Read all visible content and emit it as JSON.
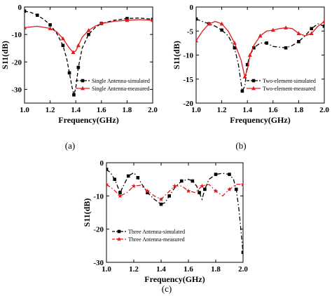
{
  "chart_data": [
    {
      "panel": "(a)",
      "type": "line",
      "xlabel": "Frequency(GHz)",
      "ylabel": "S11(dB)",
      "xlim": [
        1.0,
        2.0
      ],
      "ylim": [
        -35,
        0
      ],
      "xticks": [
        "1.0",
        "1.2",
        "1.4",
        "1.6",
        "1.8",
        "2.0"
      ],
      "yticks": [
        "-30",
        "-20",
        "-10",
        "0"
      ],
      "legend_position": "bottom-right",
      "series": [
        {
          "name": "Single Antenna-simulated",
          "color": "#000000",
          "dash": "dash",
          "marker": "square",
          "x": [
            1.0,
            1.05,
            1.1,
            1.15,
            1.2,
            1.25,
            1.3,
            1.33,
            1.35,
            1.37,
            1.385,
            1.4,
            1.42,
            1.45,
            1.5,
            1.55,
            1.6,
            1.7,
            1.8,
            1.9,
            2.0
          ],
          "y": [
            -1.5,
            -2.0,
            -3.0,
            -4.5,
            -6.5,
            -9.5,
            -14.0,
            -19.0,
            -24.0,
            -29.0,
            -32.0,
            -29.5,
            -22.0,
            -15.0,
            -10.0,
            -7.5,
            -6.0,
            -4.8,
            -4.2,
            -4.0,
            -4.5
          ]
        },
        {
          "name": "Single Antenna-measured",
          "color": "#e31a1c",
          "dash": "solid",
          "marker": "triangle",
          "x": [
            1.0,
            1.1,
            1.2,
            1.25,
            1.3,
            1.35,
            1.38,
            1.4,
            1.42,
            1.45,
            1.5,
            1.55,
            1.6,
            1.7,
            1.8,
            1.9,
            2.0
          ],
          "y": [
            -7.5,
            -7.0,
            -7.8,
            -9.0,
            -11.5,
            -15.0,
            -16.5,
            -16.0,
            -14.0,
            -11.0,
            -8.5,
            -7.0,
            -6.0,
            -5.2,
            -4.8,
            -4.6,
            -4.8
          ]
        }
      ]
    },
    {
      "panel": "(b)",
      "type": "line",
      "xlabel": "Frequency(GHz)",
      "ylabel": "S11(dB)",
      "xlim": [
        1.0,
        2.0
      ],
      "ylim": [
        -20,
        0
      ],
      "xticks": [
        "1.0",
        "1.2",
        "1.4",
        "1.6",
        "1.8",
        "2.0"
      ],
      "yticks": [
        "-20",
        "-15",
        "-10",
        "-5",
        "0"
      ],
      "legend_position": "bottom-right",
      "series": [
        {
          "name": "Two-element-simulated",
          "color": "#000000",
          "dash": "dashdot",
          "marker": "square",
          "x": [
            1.0,
            1.05,
            1.1,
            1.15,
            1.2,
            1.25,
            1.3,
            1.33,
            1.36,
            1.38,
            1.4,
            1.42,
            1.45,
            1.5,
            1.55,
            1.6,
            1.7,
            1.75,
            1.8,
            1.85,
            1.9,
            1.95,
            2.0
          ],
          "y": [
            -2.5,
            -3.0,
            -3.5,
            -4.0,
            -4.8,
            -6.0,
            -8.5,
            -12.0,
            -17.5,
            -16.5,
            -12.0,
            -10.0,
            -8.5,
            -7.5,
            -7.5,
            -8.2,
            -8.5,
            -8.0,
            -7.2,
            -6.0,
            -4.5,
            -3.5,
            -4.0
          ]
        },
        {
          "name": "Two-element-measured",
          "color": "#e31a1c",
          "dash": "solid",
          "marker": "triangle",
          "x": [
            1.0,
            1.05,
            1.1,
            1.15,
            1.2,
            1.25,
            1.3,
            1.35,
            1.38,
            1.4,
            1.42,
            1.45,
            1.5,
            1.55,
            1.6,
            1.65,
            1.7,
            1.75,
            1.8,
            1.85,
            1.9,
            1.95,
            2.0
          ],
          "y": [
            -7.0,
            -5.0,
            -3.5,
            -3.0,
            -3.5,
            -5.0,
            -7.5,
            -11.0,
            -14.5,
            -13.0,
            -10.0,
            -8.0,
            -6.0,
            -5.0,
            -4.8,
            -4.5,
            -4.3,
            -4.5,
            -5.5,
            -6.0,
            -5.5,
            -4.0,
            -3.0
          ]
        }
      ]
    },
    {
      "panel": "(c)",
      "type": "line",
      "xlabel": "Frequency(GHz)",
      "ylabel": "S11(dB)",
      "xlim": [
        1.0,
        2.0
      ],
      "ylim": [
        -30,
        0
      ],
      "xticks": [
        "1.0",
        "1.2",
        "1.4",
        "1.6",
        "1.8",
        "2.0"
      ],
      "yticks": [
        "-30",
        "-20",
        "-10",
        "0"
      ],
      "legend_position": "bottom-left",
      "series": [
        {
          "name": "Three Antenna-simulated",
          "color": "#000000",
          "dash": "dashdot",
          "marker": "square",
          "x": [
            1.0,
            1.03,
            1.06,
            1.08,
            1.1,
            1.13,
            1.16,
            1.2,
            1.23,
            1.26,
            1.3,
            1.35,
            1.4,
            1.43,
            1.46,
            1.5,
            1.55,
            1.6,
            1.63,
            1.66,
            1.68,
            1.7,
            1.72,
            1.75,
            1.8,
            1.85,
            1.9,
            1.93,
            1.95,
            1.97,
            2.0
          ],
          "y": [
            -2.0,
            -3.0,
            -5.0,
            -7.0,
            -9.0,
            -6.5,
            -4.0,
            -3.0,
            -4.5,
            -6.5,
            -9.0,
            -11.0,
            -12.5,
            -12.0,
            -10.0,
            -7.5,
            -5.5,
            -5.0,
            -5.5,
            -7.0,
            -9.0,
            -11.0,
            -8.0,
            -5.0,
            -3.5,
            -3.2,
            -3.5,
            -5.0,
            -8.0,
            -14.0,
            -27.0
          ]
        },
        {
          "name": "Three Antenna-measured",
          "color": "#e31a1c",
          "dash": "dashdot",
          "marker": "star",
          "x": [
            1.0,
            1.05,
            1.1,
            1.15,
            1.2,
            1.25,
            1.3,
            1.35,
            1.4,
            1.45,
            1.5,
            1.55,
            1.6,
            1.65,
            1.7,
            1.75,
            1.8,
            1.85,
            1.9,
            1.95,
            2.0
          ],
          "y": [
            -6.5,
            -8.0,
            -10.0,
            -9.0,
            -7.0,
            -6.8,
            -8.5,
            -10.0,
            -11.0,
            -9.0,
            -7.0,
            -7.0,
            -8.5,
            -9.0,
            -7.0,
            -6.5,
            -8.5,
            -10.0,
            -8.0,
            -6.5,
            -6.5
          ]
        }
      ]
    }
  ],
  "panels": {
    "a": {
      "label": "(a)"
    },
    "b": {
      "label": "(b)"
    },
    "c": {
      "label": "(c)"
    }
  }
}
